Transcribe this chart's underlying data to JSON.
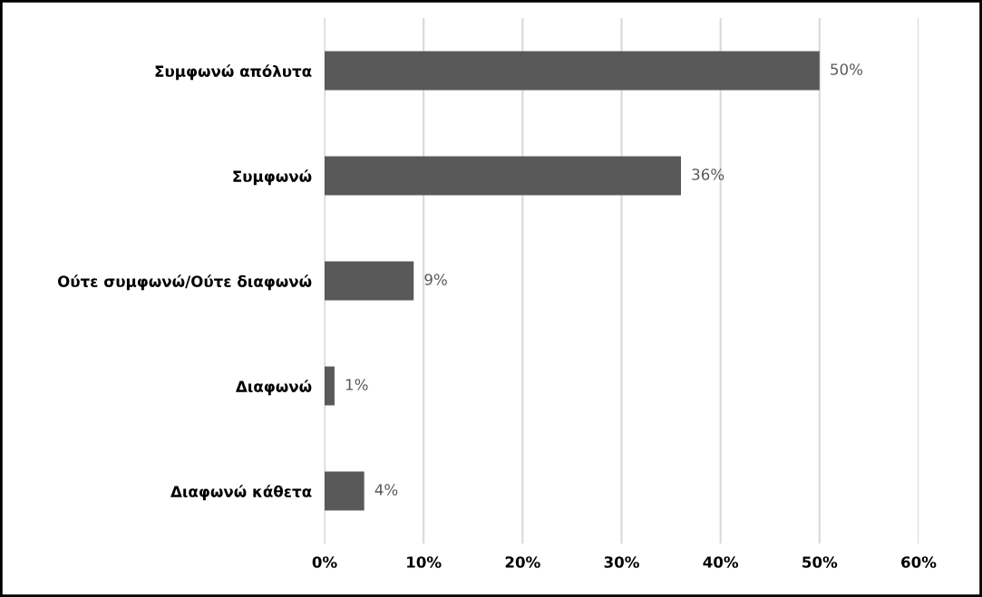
{
  "chart_data": {
    "type": "bar",
    "orientation": "horizontal",
    "categories": [
      "Συμφωνώ απόλυτα",
      "Συμφωνώ",
      "Ούτε συμφωνώ/Ούτε διαφωνώ",
      "Διαφωνώ",
      "Διαφωνώ κάθετα"
    ],
    "values": [
      50,
      36,
      9,
      1,
      4
    ],
    "value_labels": [
      "50%",
      "36%",
      "9%",
      "1%",
      "4%"
    ],
    "color": "#595959",
    "xlim": [
      0,
      60
    ],
    "xticks": [
      {
        "value": 0,
        "label": "0%"
      },
      {
        "value": 10,
        "label": "10%"
      },
      {
        "value": 20,
        "label": "20%"
      },
      {
        "value": 30,
        "label": "30%"
      },
      {
        "value": 40,
        "label": "40%"
      },
      {
        "value": 50,
        "label": "50%"
      },
      {
        "value": 60,
        "label": "60%"
      }
    ],
    "grid": "x",
    "legend": false
  }
}
